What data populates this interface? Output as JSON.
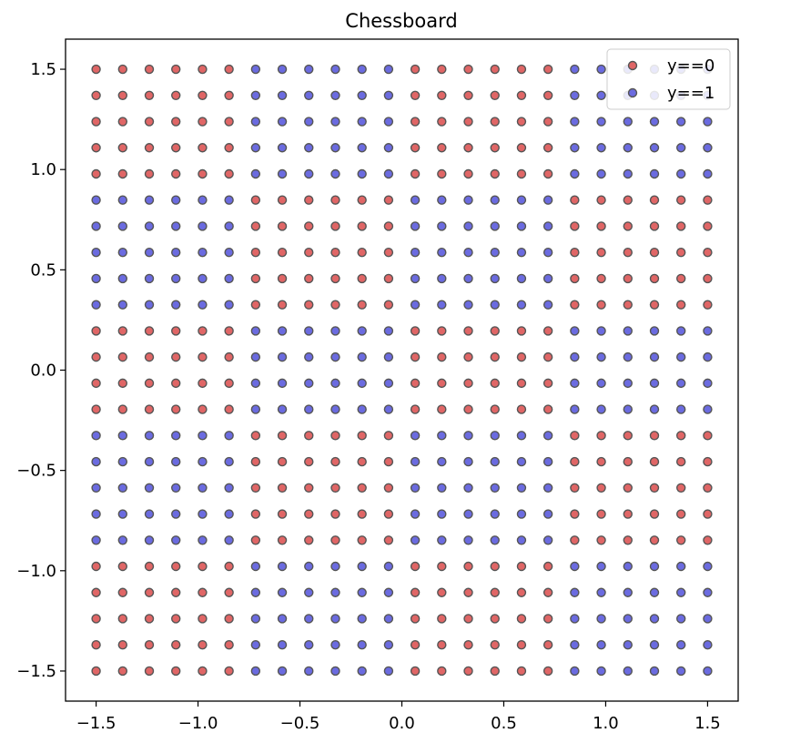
{
  "chart_data": {
    "type": "scatter",
    "title": "Chessboard",
    "xlabel": "",
    "ylabel": "",
    "xlim": [
      -1.65,
      1.65
    ],
    "ylim": [
      -1.65,
      1.65
    ],
    "xticks": [
      -1.5,
      -1.0,
      -0.5,
      0.0,
      0.5,
      1.0,
      1.5
    ],
    "xtick_labels": [
      "−1.5",
      "−1.0",
      "−0.5",
      "0.0",
      "0.5",
      "1.0",
      "1.5"
    ],
    "yticks": [
      -1.5,
      -1.0,
      -0.5,
      0.0,
      0.5,
      1.0,
      1.5
    ],
    "ytick_labels": [
      "−1.5",
      "−1.0",
      "−0.5",
      "0.0",
      "0.5",
      "1.0",
      "1.5"
    ],
    "grid": false,
    "legend_position": "top-right",
    "grid_points": {
      "x_start": -1.5,
      "x_end": 1.5,
      "x_count": 24,
      "y_start": -1.5,
      "y_end": 1.5,
      "y_count": 24,
      "column_bands": [
        -1.5,
        -0.75,
        0.0,
        0.75,
        1.5
      ],
      "row_bands": [
        -1.5,
        -0.9,
        -0.3,
        0.3,
        0.9,
        1.5
      ]
    },
    "series": [
      {
        "name": "y==0",
        "label_rule": "column_band_index + row_band_index is even",
        "color": "#e06666"
      },
      {
        "name": "y==1",
        "label_rule": "column_band_index + row_band_index is odd",
        "color": "#6b6be0"
      }
    ]
  },
  "colors": {
    "class0_fill": "#e06666",
    "class1_fill": "#6b6be0",
    "edge": "#555555"
  }
}
